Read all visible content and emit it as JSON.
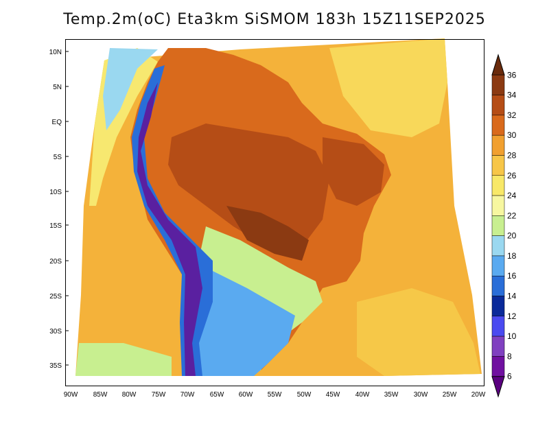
{
  "title": "Temp.2m(oC) Eta3km SiSMOM 183h 15Z11SEP2025",
  "lat_labels": [
    "10N",
    "5N",
    "EQ",
    "5S",
    "10S",
    "15S",
    "20S",
    "25S",
    "30S",
    "35S"
  ],
  "lon_labels": [
    "90W",
    "85W",
    "80W",
    "75W",
    "70W",
    "65W",
    "60W",
    "55W",
    "50W",
    "45W",
    "40W",
    "35W",
    "30W",
    "25W",
    "20W"
  ],
  "colorbar": {
    "labels": [
      "36",
      "34",
      "32",
      "30",
      "28",
      "26",
      "24",
      "22",
      "20",
      "18",
      "16",
      "14",
      "12",
      "10",
      "8",
      "6"
    ],
    "colors": [
      "#6a2b0c",
      "#8b3a12",
      "#b54d16",
      "#d96a1c",
      "#f1a030",
      "#f7c648",
      "#f8e868",
      "#f7f7a0",
      "#c8ef90",
      "#9ad8f0",
      "#5aaaf0",
      "#2a6ed8",
      "#0a2a9a",
      "#4a4af0",
      "#8040c0",
      "#7010a0",
      "#5a0080"
    ]
  }
}
